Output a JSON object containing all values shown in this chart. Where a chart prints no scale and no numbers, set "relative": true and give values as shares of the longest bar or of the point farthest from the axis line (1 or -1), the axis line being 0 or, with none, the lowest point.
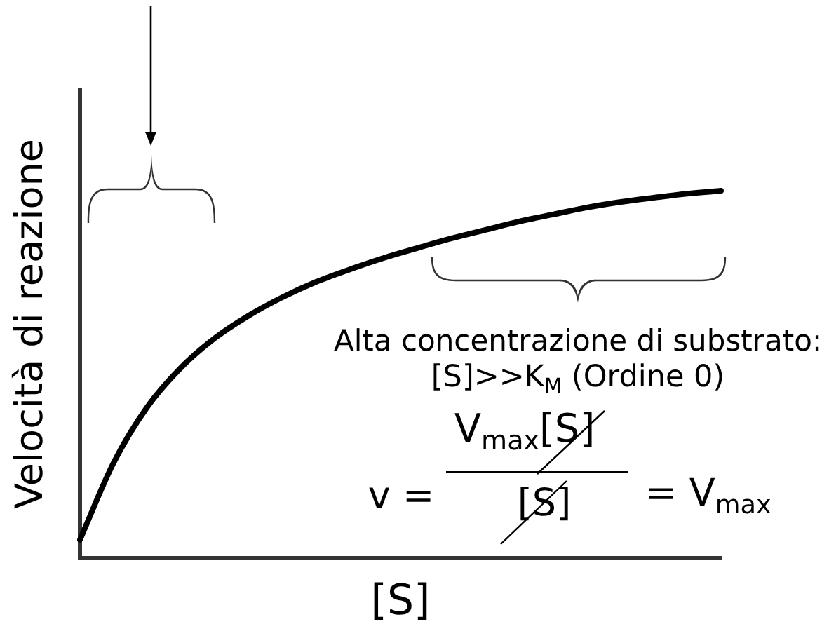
{
  "chart_data": {
    "type": "line",
    "relative": true,
    "xlabel": "[S]",
    "ylabel": "Velocità di reazione",
    "categories": [
      null,
      null,
      null,
      null,
      null,
      null,
      null,
      null,
      null,
      null,
      null,
      null,
      null,
      null,
      null,
      null,
      null,
      null,
      null,
      null
    ],
    "series": [
      {
        "color": "#000000",
        "values": [
          0.05,
          0.26,
          0.412,
          0.519,
          0.599,
          0.66,
          0.71,
          0.752,
          0.786,
          0.817,
          0.844,
          0.87,
          0.893,
          0.916,
          0.935,
          0.954,
          0.969,
          0.981,
          0.992,
          1
        ]
      }
    ],
    "annotations": [
      "Alta concentrazione di substrato:",
      "[S]>>K$_{M}$ (Ordine 0)",
      "v =",
      "V$_{max}$[S]",
      "[S]",
      "= V$_{max}$"
    ],
    "marker": "none",
    "legend": false,
    "grid": false
  }
}
